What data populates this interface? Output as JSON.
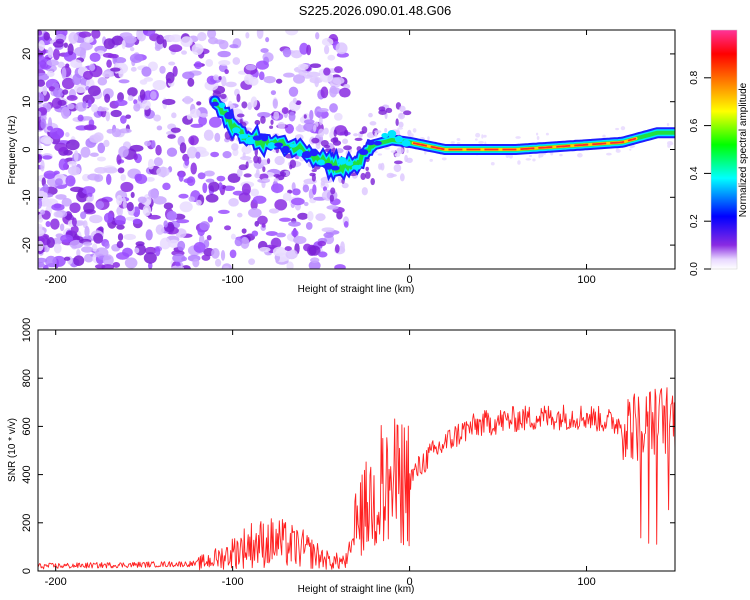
{
  "title": "S225.2026.090.01.48.G06",
  "chart_data": [
    {
      "type": "heatmap",
      "xlabel": "Height of straight line (km)",
      "ylabel": "Frequency (Hz)",
      "xlim": [
        -210,
        150
      ],
      "ylim": [
        -25,
        25
      ],
      "x_ticks": [
        "-200",
        "-100",
        "0",
        "100"
      ],
      "y_ticks": [
        "20",
        "10",
        "0",
        "-10",
        "-20"
      ],
      "colorbar": {
        "label": "Normalized spectral amplitude",
        "range": [
          0,
          1
        ],
        "ticks": [
          "0.0",
          "0.2",
          "0.4",
          "0.6",
          "0.8"
        ],
        "colors": [
          "#ffffff",
          "#e8d8ff",
          "#8a2be2",
          "#0000ff",
          "#00ffff",
          "#00ff00",
          "#ffff00",
          "#ff8000",
          "#ff0000",
          "#ff3399"
        ]
      },
      "ridge": {
        "x": [
          -110,
          -100,
          -90,
          -80,
          -70,
          -60,
          -50,
          -40,
          -30,
          -20,
          -10,
          0,
          20,
          40,
          60,
          80,
          100,
          120,
          130,
          140,
          150
        ],
        "y": [
          10,
          5,
          2,
          1.5,
          1,
          0,
          -2,
          -4,
          -3,
          1,
          2,
          1.5,
          0,
          0,
          0,
          0.5,
          1,
          1.5,
          2.5,
          3.5,
          3.5
        ]
      }
    },
    {
      "type": "line",
      "xlabel": "Height of straight line (km)",
      "ylabel": "SNR (10 * v/v)",
      "xlim": [
        -210,
        150
      ],
      "ylim": [
        0,
        1000
      ],
      "x_ticks": [
        "-200",
        "-100",
        "0",
        "100"
      ],
      "y_ticks": [
        "0",
        "200",
        "400",
        "600",
        "800",
        "1000"
      ],
      "color": "#ff0000",
      "envelope": {
        "x": [
          -210,
          -120,
          -105,
          -90,
          -75,
          -60,
          -45,
          -35,
          -30,
          -25,
          -20,
          -10,
          0,
          10,
          20,
          30,
          40,
          60,
          80,
          100,
          120,
          130,
          140,
          150
        ],
        "y": [
          20,
          30,
          60,
          110,
          120,
          90,
          40,
          40,
          200,
          260,
          300,
          360,
          380,
          470,
          530,
          580,
          610,
          630,
          640,
          640,
          610,
          600,
          620,
          640
        ]
      }
    }
  ]
}
